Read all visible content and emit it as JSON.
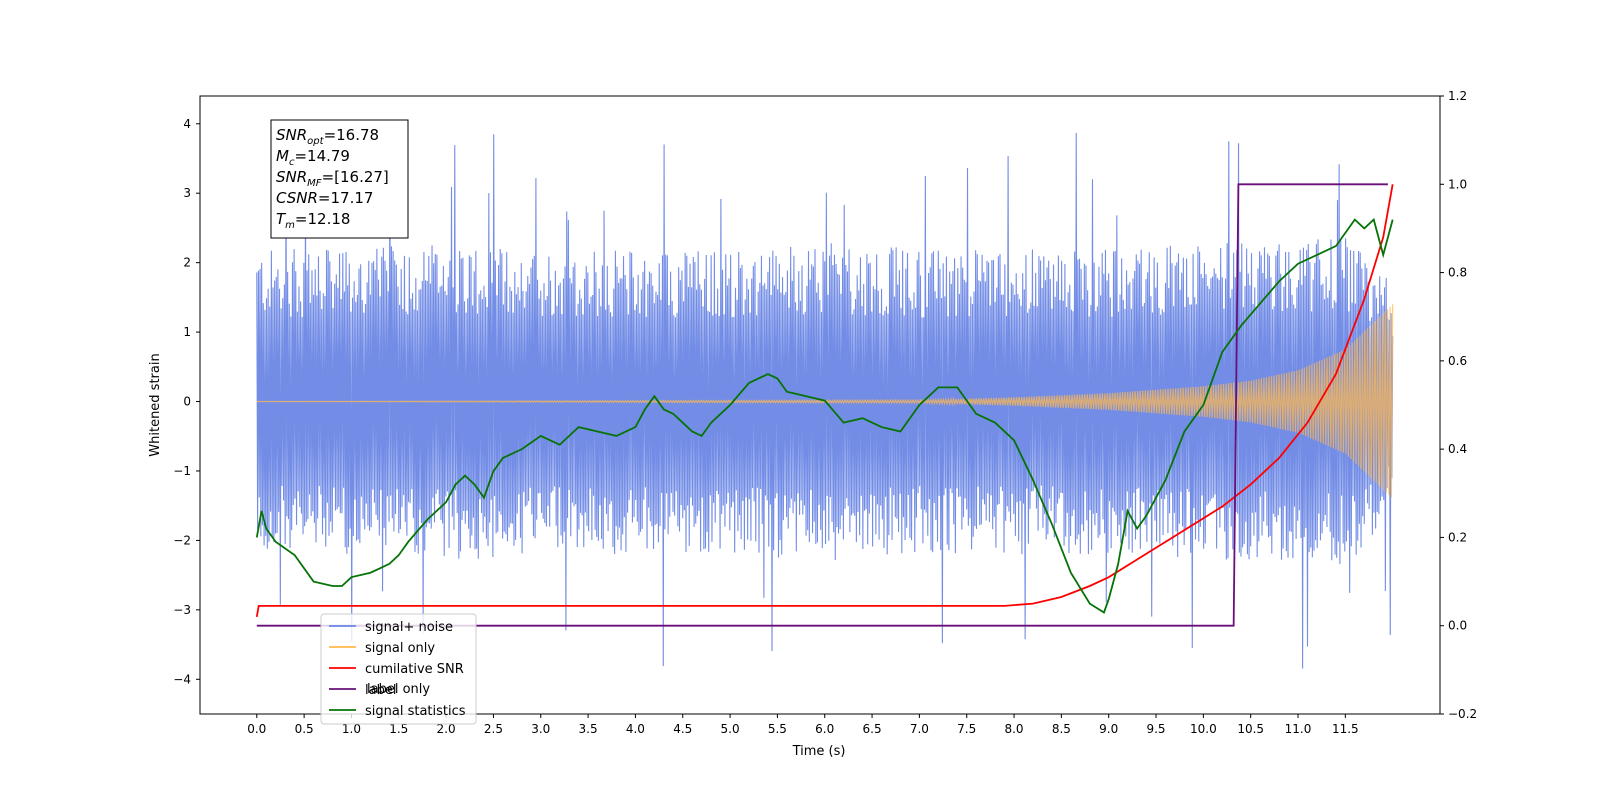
{
  "chart_data": {
    "type": "line",
    "xlabel": "Time (s)",
    "ylabel": "Whitened strain",
    "xlim": [
      -0.6,
      12.5
    ],
    "ylim": [
      -4.5,
      4.4
    ],
    "y2lim": [
      -0.2,
      1.2
    ],
    "x_ticks": [
      0.0,
      0.5,
      1.0,
      1.5,
      2.0,
      2.5,
      3.0,
      3.5,
      4.0,
      4.5,
      5.0,
      5.5,
      6.0,
      6.5,
      7.0,
      7.5,
      8.0,
      8.5,
      9.0,
      9.5,
      10.0,
      10.5,
      11.0,
      11.5
    ],
    "x_tick_labels": [
      "0.0",
      "0.5",
      "1.0",
      "1.5",
      "2.0",
      "2.5",
      "3.0",
      "3.5",
      "4.0",
      "4.5",
      "5.0",
      "5.5",
      "6.0",
      "6.5",
      "7.0",
      "7.5",
      "8.0",
      "8.5",
      "9.0",
      "9.5",
      "10.0",
      "10.5",
      "11.0",
      "11.5"
    ],
    "y_ticks": [
      -4,
      -3,
      -2,
      -1,
      0,
      1,
      2,
      3,
      4
    ],
    "y_tick_labels": [
      "−4",
      "−3",
      "−2",
      "−1",
      "0",
      "1",
      "2",
      "3",
      "4"
    ],
    "y2_ticks": [
      -0.2,
      0.0,
      0.2,
      0.4,
      0.6,
      0.8,
      1.0,
      1.2
    ],
    "y2_tick_labels": [
      "−0.2",
      "0.0",
      "0.2",
      "0.4",
      "0.6",
      "0.8",
      "1.0",
      "1.2"
    ],
    "grid": false,
    "legend_position": "lower-left",
    "annotation_box": {
      "position": "top-left",
      "lines": [
        {
          "base": "SNR",
          "sub": "opt",
          "value": "=16.78"
        },
        {
          "base": "M",
          "sub": "c",
          "value": "=14.79"
        },
        {
          "base": "SNR",
          "sub": "MF",
          "value": "=[16.27]"
        },
        {
          "base": "CSNR",
          "sub": "",
          "value": "=17.17"
        },
        {
          "base": "T",
          "sub": "m",
          "value": "=12.18"
        }
      ]
    },
    "series": [
      {
        "name": "signal+ noise",
        "color": "#6b87e5",
        "axis": "left",
        "x_range": [
          0.0,
          12.0
        ],
        "envelope_points": [
          0.0,
          1.0,
          2.0,
          3.0,
          4.0,
          5.0,
          6.0,
          7.0,
          8.0,
          9.0,
          10.0,
          10.5,
          11.0,
          11.5,
          12.0
        ],
        "envelope_low": [
          -2.2,
          -2.2,
          -2.3,
          -2.2,
          -2.2,
          -2.2,
          -2.3,
          -2.2,
          -2.2,
          -2.2,
          -2.3,
          -2.3,
          -2.3,
          -2.4,
          -1.6
        ],
        "envelope_high": [
          2.2,
          2.2,
          2.3,
          2.2,
          2.2,
          2.2,
          2.3,
          2.2,
          2.2,
          2.2,
          2.3,
          2.3,
          2.3,
          2.4,
          1.7
        ],
        "extremes_min": -4.1,
        "extremes_max": 4.0
      },
      {
        "name": "signal only",
        "color": "#ffb84d",
        "axis": "left",
        "x": [
          0.0,
          7.0,
          8.0,
          9.0,
          10.0,
          10.5,
          11.0,
          11.5,
          12.0
        ],
        "amplitude": [
          0.0,
          0.02,
          0.06,
          0.12,
          0.22,
          0.3,
          0.45,
          0.75,
          1.4
        ]
      },
      {
        "name": "cumilative SNR",
        "color": "#ff0000",
        "axis": "right",
        "x": [
          0.0,
          0.02,
          1.0,
          2.0,
          3.0,
          4.0,
          5.0,
          6.0,
          7.0,
          7.9,
          8.2,
          8.5,
          8.8,
          9.0,
          9.3,
          9.6,
          9.9,
          10.2,
          10.5,
          10.8,
          11.1,
          11.4,
          11.7,
          11.9,
          12.0
        ],
        "y": [
          0.02,
          0.045,
          0.045,
          0.045,
          0.045,
          0.045,
          0.045,
          0.045,
          0.045,
          0.045,
          0.05,
          0.065,
          0.09,
          0.11,
          0.15,
          0.19,
          0.23,
          0.27,
          0.32,
          0.38,
          0.46,
          0.57,
          0.74,
          0.88,
          1.0
        ]
      },
      {
        "name": "label",
        "color": "#6a0f7a",
        "axis": "right",
        "x": [
          0.0,
          10.32,
          10.37,
          11.95
        ],
        "y": [
          0.0,
          0.0,
          1.0,
          1.0
        ]
      },
      {
        "name": "signal statistics",
        "color": "#067306",
        "axis": "right",
        "x": [
          0.0,
          0.05,
          0.1,
          0.2,
          0.4,
          0.6,
          0.8,
          0.9,
          1.0,
          1.2,
          1.4,
          1.5,
          1.6,
          1.8,
          2.0,
          2.1,
          2.2,
          2.3,
          2.4,
          2.5,
          2.6,
          2.8,
          3.0,
          3.2,
          3.4,
          3.6,
          3.8,
          4.0,
          4.1,
          4.2,
          4.3,
          4.4,
          4.5,
          4.6,
          4.7,
          4.8,
          5.0,
          5.2,
          5.4,
          5.5,
          5.6,
          5.8,
          6.0,
          6.2,
          6.4,
          6.6,
          6.8,
          7.0,
          7.2,
          7.4,
          7.6,
          7.8,
          8.0,
          8.2,
          8.4,
          8.6,
          8.8,
          8.95,
          9.0,
          9.1,
          9.2,
          9.3,
          9.4,
          9.6,
          9.8,
          10.0,
          10.2,
          10.4,
          10.6,
          10.8,
          11.0,
          11.2,
          11.4,
          11.6,
          11.7,
          11.8,
          11.9,
          12.0
        ],
        "y": [
          0.2,
          0.26,
          0.22,
          0.19,
          0.16,
          0.1,
          0.09,
          0.09,
          0.11,
          0.12,
          0.14,
          0.16,
          0.19,
          0.24,
          0.28,
          0.32,
          0.34,
          0.32,
          0.29,
          0.35,
          0.38,
          0.4,
          0.43,
          0.41,
          0.45,
          0.44,
          0.43,
          0.45,
          0.49,
          0.52,
          0.49,
          0.48,
          0.46,
          0.44,
          0.43,
          0.46,
          0.5,
          0.55,
          0.57,
          0.56,
          0.53,
          0.52,
          0.51,
          0.46,
          0.47,
          0.45,
          0.44,
          0.5,
          0.54,
          0.54,
          0.48,
          0.46,
          0.42,
          0.33,
          0.23,
          0.12,
          0.05,
          0.03,
          0.06,
          0.14,
          0.26,
          0.22,
          0.25,
          0.33,
          0.44,
          0.5,
          0.62,
          0.68,
          0.73,
          0.78,
          0.82,
          0.84,
          0.86,
          0.92,
          0.9,
          0.92,
          0.84,
          0.92
        ]
      }
    ],
    "legend": [
      "signal+ noise",
      "signal only",
      "cumilative SNR",
      "label",
      "signal statistics"
    ],
    "legend_hidden_text": "label only"
  }
}
